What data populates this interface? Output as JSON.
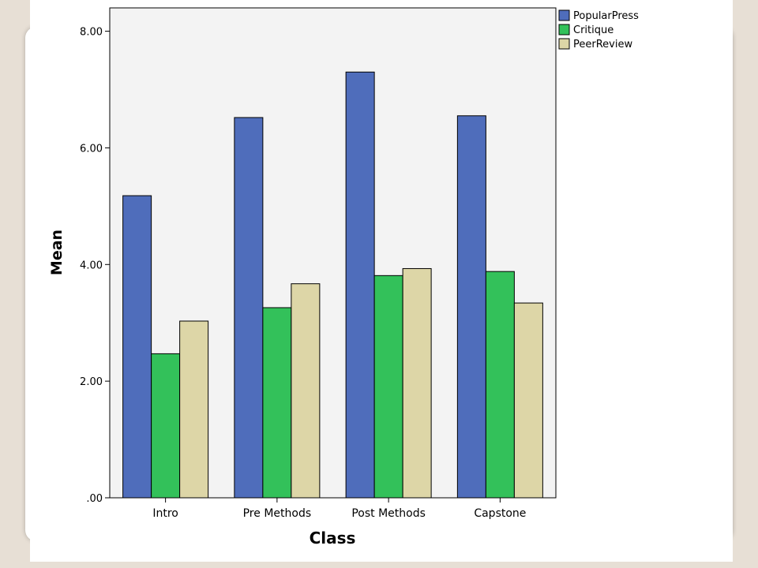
{
  "chart_data": {
    "type": "bar",
    "xlabel": "Class",
    "ylabel": "Mean",
    "categories": [
      "Intro",
      "Pre Methods",
      "Post Methods",
      "Capstone"
    ],
    "ylim": [
      0,
      8.4
    ],
    "yticks": [
      0,
      2,
      4,
      6,
      8
    ],
    "ytick_labels": [
      ".00",
      "2.00",
      "4.00",
      "6.00",
      "8.00"
    ],
    "series": [
      {
        "name": "PopularPress",
        "color": "#4f6dbb",
        "values": [
          5.18,
          6.52,
          7.3,
          6.55
        ]
      },
      {
        "name": "Critique",
        "color": "#33c15a",
        "values": [
          2.47,
          3.26,
          3.81,
          3.88
        ]
      },
      {
        "name": "PeerReview",
        "color": "#ddd6a7",
        "values": [
          3.03,
          3.67,
          3.93,
          3.34
        ]
      }
    ],
    "grid": false,
    "legend": "top-right",
    "plot_background": "#f3f3f3"
  }
}
